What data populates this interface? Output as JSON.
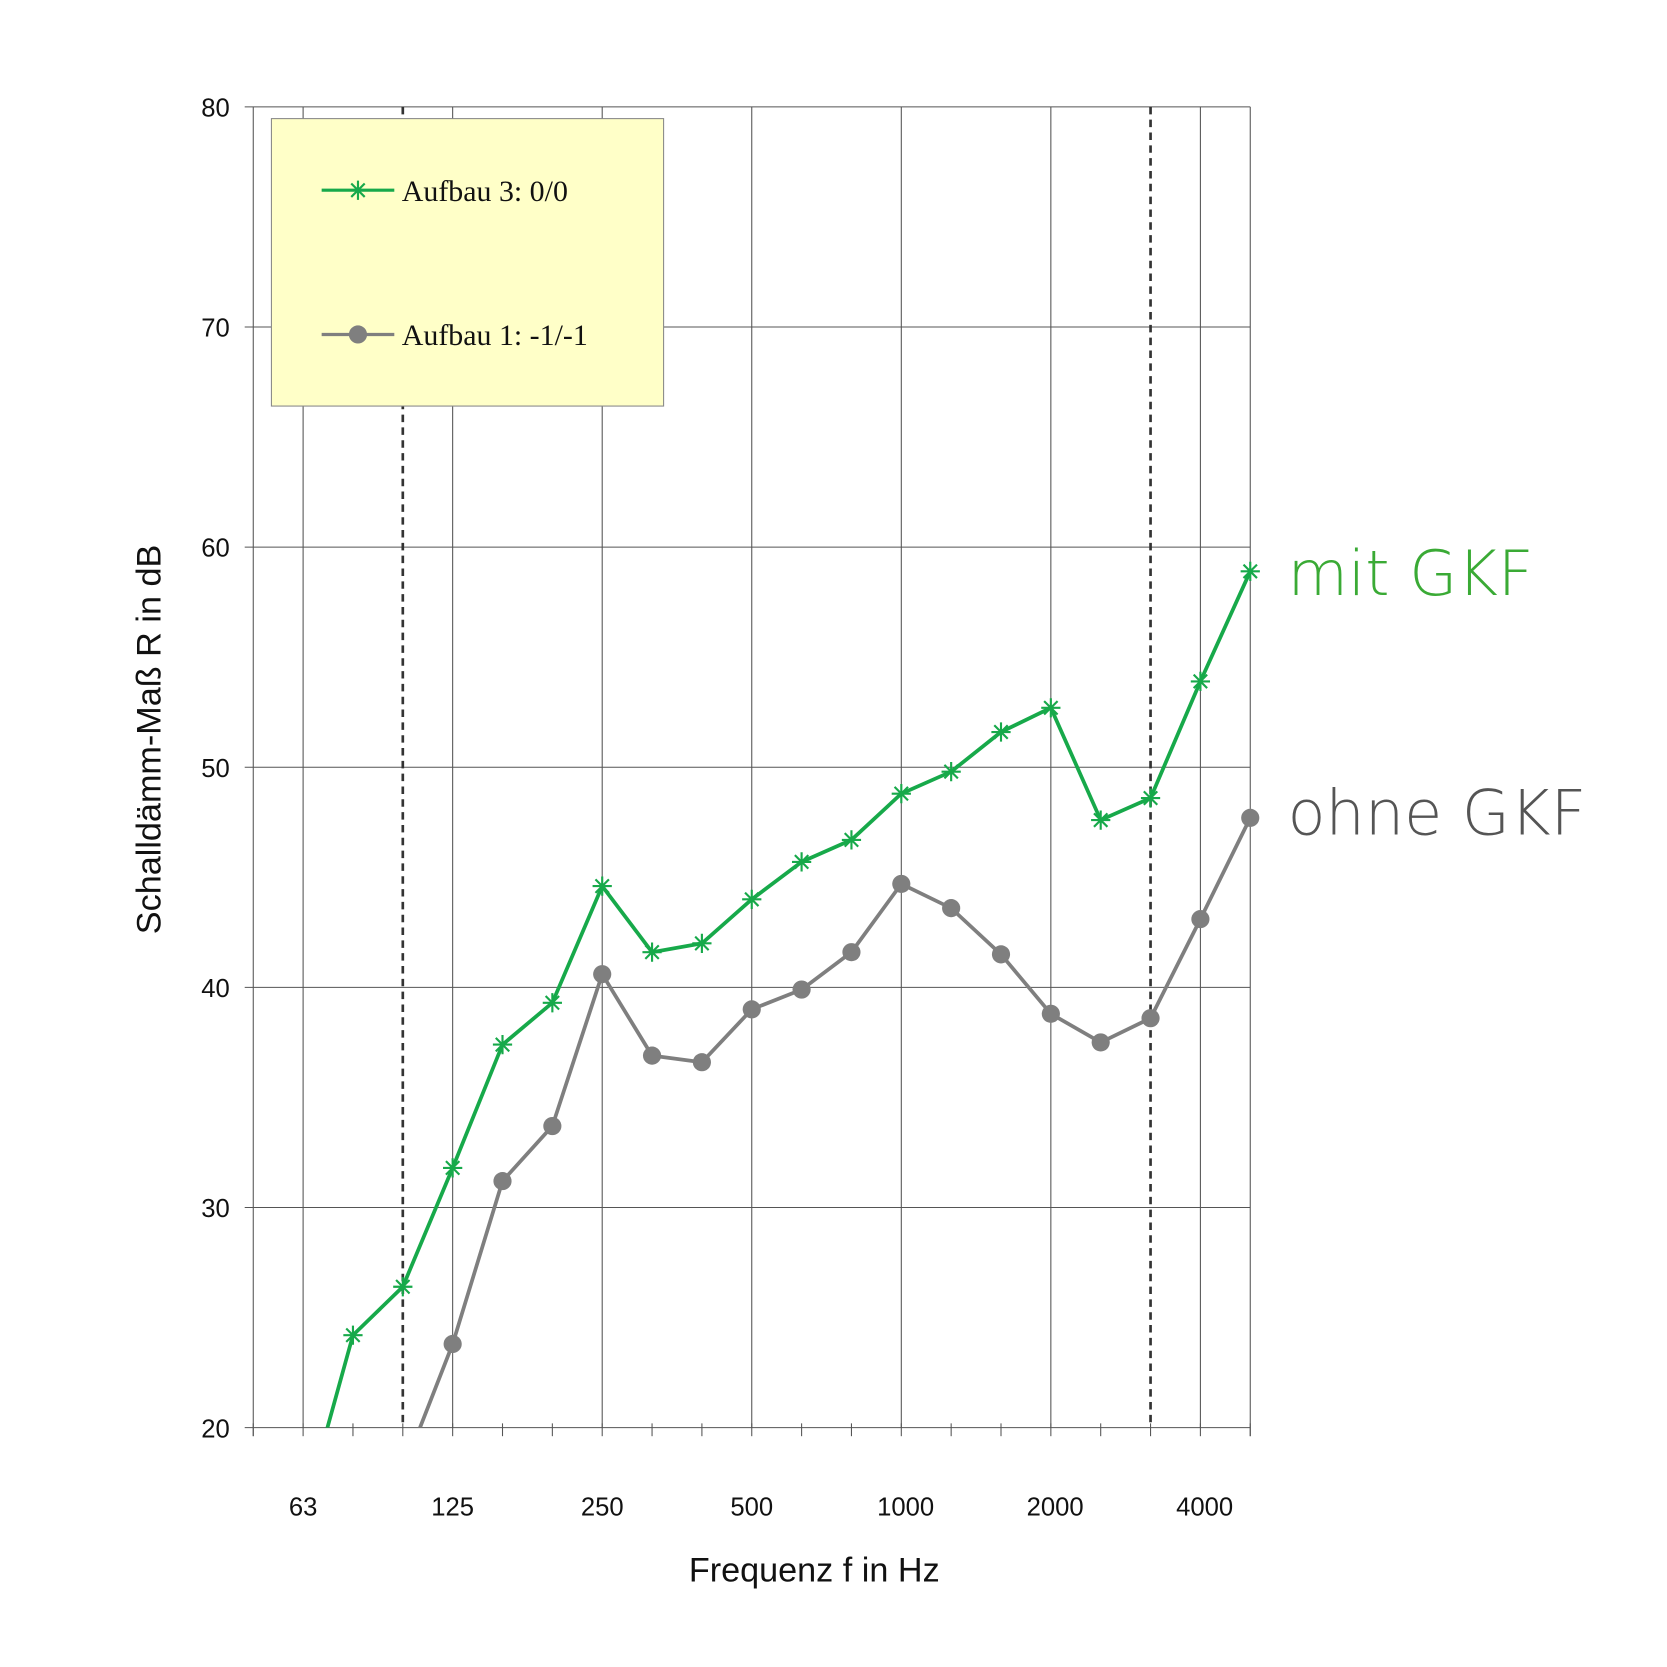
{
  "chart_data": {
    "type": "line",
    "xlabel": "Frequenz f in Hz",
    "ylabel": "Schalldämm-Maß R in dB",
    "ylim": [
      20,
      80
    ],
    "yticks": [
      "20",
      "30",
      "40",
      "50",
      "60",
      "70",
      "80"
    ],
    "x": [
      50,
      63,
      80,
      100,
      125,
      160,
      200,
      250,
      315,
      400,
      500,
      630,
      800,
      1000,
      1250,
      1600,
      2000,
      2500,
      3150,
      4000,
      5000
    ],
    "xtick_labels": [
      "63",
      "125",
      "250",
      "500",
      "1000",
      "2000",
      "4000"
    ],
    "xtick_freqs": [
      63,
      125,
      250,
      500,
      1000,
      2000,
      4000
    ],
    "dashed_lines_at": [
      100,
      3150
    ],
    "grid": true,
    "legend_placement": "top-left",
    "series": [
      {
        "name": "Aufbau 3: 0/0",
        "marker": "asterisk",
        "color": "#17a94a",
        "values": [
          null,
          16.0,
          24.2,
          26.4,
          31.8,
          37.4,
          39.3,
          44.6,
          41.6,
          42.0,
          44.0,
          45.7,
          46.7,
          48.8,
          49.8,
          51.6,
          52.7,
          47.6,
          48.6,
          53.9,
          58.9
        ],
        "annotation": "mit GKF",
        "annotation_color": "#3aaa35"
      },
      {
        "name": "Aufbau 1: -1/-1",
        "marker": "circle",
        "color": "#7f7f7f",
        "values": [
          null,
          null,
          null,
          18.0,
          23.8,
          31.2,
          33.7,
          40.6,
          36.9,
          36.6,
          39.0,
          39.9,
          41.6,
          44.7,
          43.6,
          41.5,
          38.8,
          37.5,
          38.6,
          43.1,
          47.7
        ],
        "annotation": "ohne GKF",
        "annotation_color": "#555555"
      }
    ]
  }
}
